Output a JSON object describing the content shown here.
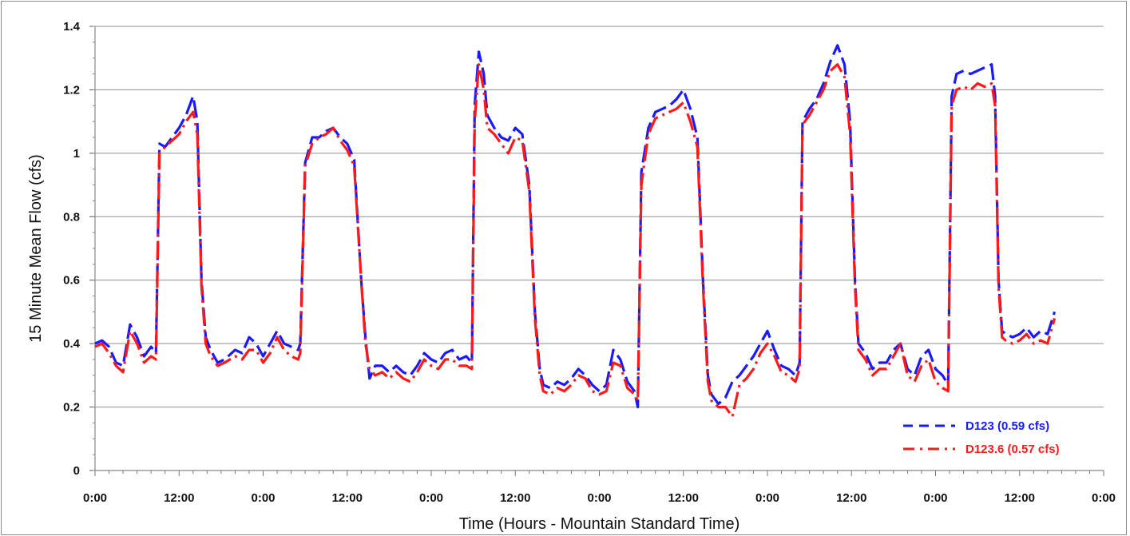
{
  "chart_data": {
    "type": "line",
    "xlabel": "Time (Hours - Mountain Standard Time)",
    "ylabel": "15 Minute Mean Flow (cfs)",
    "ylim": [
      0,
      1.4
    ],
    "yticks": [
      0,
      0.2,
      0.4,
      0.6,
      0.8,
      1,
      1.2,
      1.4
    ],
    "ytick_labels": [
      "0",
      "0.2",
      "0.4",
      "0.6",
      "0.8",
      "1",
      "1.2",
      "1.4"
    ],
    "xlim": [
      0,
      144
    ],
    "xticks": [
      0,
      12,
      24,
      36,
      48,
      60,
      72,
      84,
      96,
      108,
      120,
      132,
      144
    ],
    "xtick_labels": [
      "0:00",
      "12:00",
      "0:00",
      "12:00",
      "0:00",
      "12:00",
      "0:00",
      "12:00",
      "0:00",
      "12:00",
      "0:00",
      "12:00",
      "0:00"
    ],
    "grid": "horizontal",
    "legend_position": "bottom-right",
    "series": [
      {
        "name": "D123 (0.59 cfs)",
        "color": "#1a1aff",
        "dash": "dashed",
        "points": [
          [
            0,
            0.4
          ],
          [
            1,
            0.41
          ],
          [
            2,
            0.39
          ],
          [
            3,
            0.34
          ],
          [
            4,
            0.33
          ],
          [
            5,
            0.46
          ],
          [
            6,
            0.42
          ],
          [
            7,
            0.36
          ],
          [
            8,
            0.39
          ],
          [
            8.7,
            0.37
          ],
          [
            9.2,
            1.03
          ],
          [
            10,
            1.02
          ],
          [
            11,
            1.05
          ],
          [
            12,
            1.08
          ],
          [
            13,
            1.12
          ],
          [
            14,
            1.18
          ],
          [
            14.6,
            1.1
          ],
          [
            15.2,
            0.6
          ],
          [
            15.8,
            0.42
          ],
          [
            16.5,
            0.38
          ],
          [
            17.5,
            0.34
          ],
          [
            18.5,
            0.35
          ],
          [
            20,
            0.38
          ],
          [
            21,
            0.37
          ],
          [
            22,
            0.42
          ],
          [
            23,
            0.4
          ],
          [
            24,
            0.36
          ],
          [
            25,
            0.4
          ],
          [
            26,
            0.44
          ],
          [
            27,
            0.4
          ],
          [
            28,
            0.39
          ],
          [
            29,
            0.38
          ],
          [
            29.3,
            0.4
          ],
          [
            30,
            0.97
          ],
          [
            31,
            1.05
          ],
          [
            32,
            1.05
          ],
          [
            33,
            1.07
          ],
          [
            34,
            1.08
          ],
          [
            35,
            1.05
          ],
          [
            36,
            1.03
          ],
          [
            37,
            0.98
          ],
          [
            38,
            0.6
          ],
          [
            38.6,
            0.42
          ],
          [
            39.2,
            0.29
          ],
          [
            40,
            0.33
          ],
          [
            41,
            0.33
          ],
          [
            42,
            0.31
          ],
          [
            43,
            0.33
          ],
          [
            44,
            0.31
          ],
          [
            45,
            0.3
          ],
          [
            46,
            0.33
          ],
          [
            47,
            0.37
          ],
          [
            48,
            0.35
          ],
          [
            49,
            0.34
          ],
          [
            50,
            0.37
          ],
          [
            51,
            0.38
          ],
          [
            52,
            0.35
          ],
          [
            53,
            0.36
          ],
          [
            53.8,
            0.34
          ],
          [
            54.2,
            1.15
          ],
          [
            54.8,
            1.32
          ],
          [
            55.5,
            1.25
          ],
          [
            56,
            1.12
          ],
          [
            57,
            1.08
          ],
          [
            58,
            1.05
          ],
          [
            59,
            1.04
          ],
          [
            60,
            1.08
          ],
          [
            61,
            1.06
          ],
          [
            62,
            0.9
          ],
          [
            62.8,
            0.5
          ],
          [
            63.5,
            0.32
          ],
          [
            64,
            0.27
          ],
          [
            65,
            0.26
          ],
          [
            66,
            0.28
          ],
          [
            67,
            0.27
          ],
          [
            68,
            0.29
          ],
          [
            69,
            0.32
          ],
          [
            70,
            0.3
          ],
          [
            71,
            0.27
          ],
          [
            72,
            0.25
          ],
          [
            73,
            0.27
          ],
          [
            74,
            0.38
          ],
          [
            75,
            0.35
          ],
          [
            76,
            0.28
          ],
          [
            77,
            0.25
          ],
          [
            77.5,
            0.2
          ],
          [
            78,
            0.94
          ],
          [
            79,
            1.08
          ],
          [
            80,
            1.13
          ],
          [
            81,
            1.14
          ],
          [
            82,
            1.15
          ],
          [
            83,
            1.17
          ],
          [
            84,
            1.2
          ],
          [
            85,
            1.14
          ],
          [
            86,
            1.05
          ],
          [
            86.8,
            0.6
          ],
          [
            87.5,
            0.3
          ],
          [
            88,
            0.24
          ],
          [
            89,
            0.21
          ],
          [
            90,
            0.23
          ],
          [
            91,
            0.28
          ],
          [
            92,
            0.3
          ],
          [
            93,
            0.33
          ],
          [
            94,
            0.36
          ],
          [
            95,
            0.4
          ],
          [
            96,
            0.44
          ],
          [
            97,
            0.38
          ],
          [
            98,
            0.33
          ],
          [
            99,
            0.32
          ],
          [
            100,
            0.3
          ],
          [
            100.6,
            0.34
          ],
          [
            101,
            1.1
          ],
          [
            102,
            1.14
          ],
          [
            103,
            1.17
          ],
          [
            104,
            1.22
          ],
          [
            105,
            1.29
          ],
          [
            106,
            1.34
          ],
          [
            107,
            1.28
          ],
          [
            107.8,
            1.1
          ],
          [
            108.5,
            0.6
          ],
          [
            109,
            0.4
          ],
          [
            110,
            0.37
          ],
          [
            111,
            0.32
          ],
          [
            112,
            0.34
          ],
          [
            113,
            0.34
          ],
          [
            114,
            0.38
          ],
          [
            115,
            0.4
          ],
          [
            116,
            0.32
          ],
          [
            117,
            0.3
          ],
          [
            118,
            0.36
          ],
          [
            119,
            0.38
          ],
          [
            120,
            0.32
          ],
          [
            121,
            0.3
          ],
          [
            121.8,
            0.27
          ],
          [
            122.3,
            1.18
          ],
          [
            123,
            1.25
          ],
          [
            124,
            1.26
          ],
          [
            125,
            1.25
          ],
          [
            126,
            1.26
          ],
          [
            127,
            1.27
          ],
          [
            128,
            1.28
          ],
          [
            128.5,
            1.18
          ],
          [
            129,
            0.6
          ],
          [
            129.5,
            0.44
          ],
          [
            130,
            0.43
          ],
          [
            131,
            0.42
          ],
          [
            132,
            0.43
          ],
          [
            133,
            0.45
          ],
          [
            134,
            0.42
          ],
          [
            135,
            0.44
          ],
          [
            136,
            0.43
          ],
          [
            137,
            0.5
          ]
        ]
      },
      {
        "name": "D123.6 (0.57 cfs)",
        "color": "#ff1a1a",
        "dash": "dashdot",
        "points": [
          [
            0,
            0.39
          ],
          [
            1,
            0.4
          ],
          [
            2,
            0.37
          ],
          [
            3,
            0.33
          ],
          [
            4,
            0.31
          ],
          [
            5,
            0.44
          ],
          [
            6,
            0.4
          ],
          [
            7,
            0.34
          ],
          [
            8,
            0.36
          ],
          [
            8.7,
            0.35
          ],
          [
            9.2,
            1.0
          ],
          [
            10,
            1.02
          ],
          [
            11,
            1.04
          ],
          [
            12,
            1.06
          ],
          [
            13,
            1.1
          ],
          [
            14,
            1.13
          ],
          [
            14.6,
            1.06
          ],
          [
            15.2,
            0.58
          ],
          [
            15.8,
            0.4
          ],
          [
            16.5,
            0.36
          ],
          [
            17.5,
            0.33
          ],
          [
            18.5,
            0.34
          ],
          [
            20,
            0.36
          ],
          [
            21,
            0.35
          ],
          [
            22,
            0.38
          ],
          [
            23,
            0.38
          ],
          [
            24,
            0.34
          ],
          [
            25,
            0.37
          ],
          [
            26,
            0.42
          ],
          [
            27,
            0.38
          ],
          [
            28,
            0.36
          ],
          [
            29,
            0.35
          ],
          [
            29.3,
            0.37
          ],
          [
            30,
            0.96
          ],
          [
            31,
            1.03
          ],
          [
            32,
            1.05
          ],
          [
            33,
            1.06
          ],
          [
            34,
            1.08
          ],
          [
            35,
            1.04
          ],
          [
            36,
            1.01
          ],
          [
            37,
            0.96
          ],
          [
            38,
            0.6
          ],
          [
            38.6,
            0.4
          ],
          [
            39.2,
            0.32
          ],
          [
            40,
            0.3
          ],
          [
            41,
            0.31
          ],
          [
            42,
            0.29
          ],
          [
            43,
            0.31
          ],
          [
            44,
            0.29
          ],
          [
            45,
            0.28
          ],
          [
            46,
            0.31
          ],
          [
            47,
            0.35
          ],
          [
            48,
            0.33
          ],
          [
            49,
            0.32
          ],
          [
            50,
            0.35
          ],
          [
            51,
            0.35
          ],
          [
            52,
            0.33
          ],
          [
            53,
            0.33
          ],
          [
            53.8,
            0.32
          ],
          [
            54.2,
            1.1
          ],
          [
            54.8,
            1.28
          ],
          [
            55.5,
            1.2
          ],
          [
            56,
            1.08
          ],
          [
            57,
            1.06
          ],
          [
            58,
            1.03
          ],
          [
            59,
            1.0
          ],
          [
            60,
            1.05
          ],
          [
            61,
            1.04
          ],
          [
            62,
            0.88
          ],
          [
            62.8,
            0.48
          ],
          [
            63.5,
            0.3
          ],
          [
            64,
            0.25
          ],
          [
            65,
            0.24
          ],
          [
            66,
            0.26
          ],
          [
            67,
            0.25
          ],
          [
            68,
            0.27
          ],
          [
            69,
            0.3
          ],
          [
            70,
            0.29
          ],
          [
            71,
            0.25
          ],
          [
            72,
            0.24
          ],
          [
            73,
            0.25
          ],
          [
            74,
            0.34
          ],
          [
            75,
            0.33
          ],
          [
            76,
            0.26
          ],
          [
            77,
            0.24
          ],
          [
            77.5,
            0.22
          ],
          [
            78,
            0.9
          ],
          [
            79,
            1.06
          ],
          [
            80,
            1.11
          ],
          [
            81,
            1.12
          ],
          [
            82,
            1.13
          ],
          [
            83,
            1.14
          ],
          [
            84,
            1.16
          ],
          [
            85,
            1.1
          ],
          [
            86,
            1.02
          ],
          [
            86.8,
            0.58
          ],
          [
            87.5,
            0.28
          ],
          [
            88,
            0.22
          ],
          [
            89,
            0.2
          ],
          [
            90,
            0.2
          ],
          [
            91,
            0.17
          ],
          [
            92,
            0.27
          ],
          [
            93,
            0.29
          ],
          [
            94,
            0.32
          ],
          [
            95,
            0.37
          ],
          [
            96,
            0.4
          ],
          [
            97,
            0.36
          ],
          [
            98,
            0.31
          ],
          [
            99,
            0.3
          ],
          [
            100,
            0.28
          ],
          [
            100.6,
            0.32
          ],
          [
            101,
            1.09
          ],
          [
            102,
            1.12
          ],
          [
            103,
            1.16
          ],
          [
            104,
            1.2
          ],
          [
            105,
            1.26
          ],
          [
            106,
            1.28
          ],
          [
            107,
            1.24
          ],
          [
            107.8,
            1.06
          ],
          [
            108.5,
            0.58
          ],
          [
            109,
            0.38
          ],
          [
            110,
            0.35
          ],
          [
            111,
            0.3
          ],
          [
            112,
            0.32
          ],
          [
            113,
            0.32
          ],
          [
            114,
            0.36
          ],
          [
            115,
            0.4
          ],
          [
            116,
            0.3
          ],
          [
            117,
            0.28
          ],
          [
            118,
            0.33
          ],
          [
            119,
            0.35
          ],
          [
            120,
            0.28
          ],
          [
            121,
            0.26
          ],
          [
            121.8,
            0.25
          ],
          [
            122.3,
            1.15
          ],
          [
            123,
            1.2
          ],
          [
            124,
            1.21
          ],
          [
            125,
            1.2
          ],
          [
            126,
            1.22
          ],
          [
            127,
            1.21
          ],
          [
            128,
            1.22
          ],
          [
            128.5,
            1.15
          ],
          [
            129,
            0.58
          ],
          [
            129.5,
            0.42
          ],
          [
            130,
            0.41
          ],
          [
            131,
            0.4
          ],
          [
            132,
            0.41
          ],
          [
            133,
            0.43
          ],
          [
            134,
            0.4
          ],
          [
            135,
            0.41
          ],
          [
            136,
            0.4
          ],
          [
            137,
            0.48
          ]
        ]
      }
    ]
  }
}
